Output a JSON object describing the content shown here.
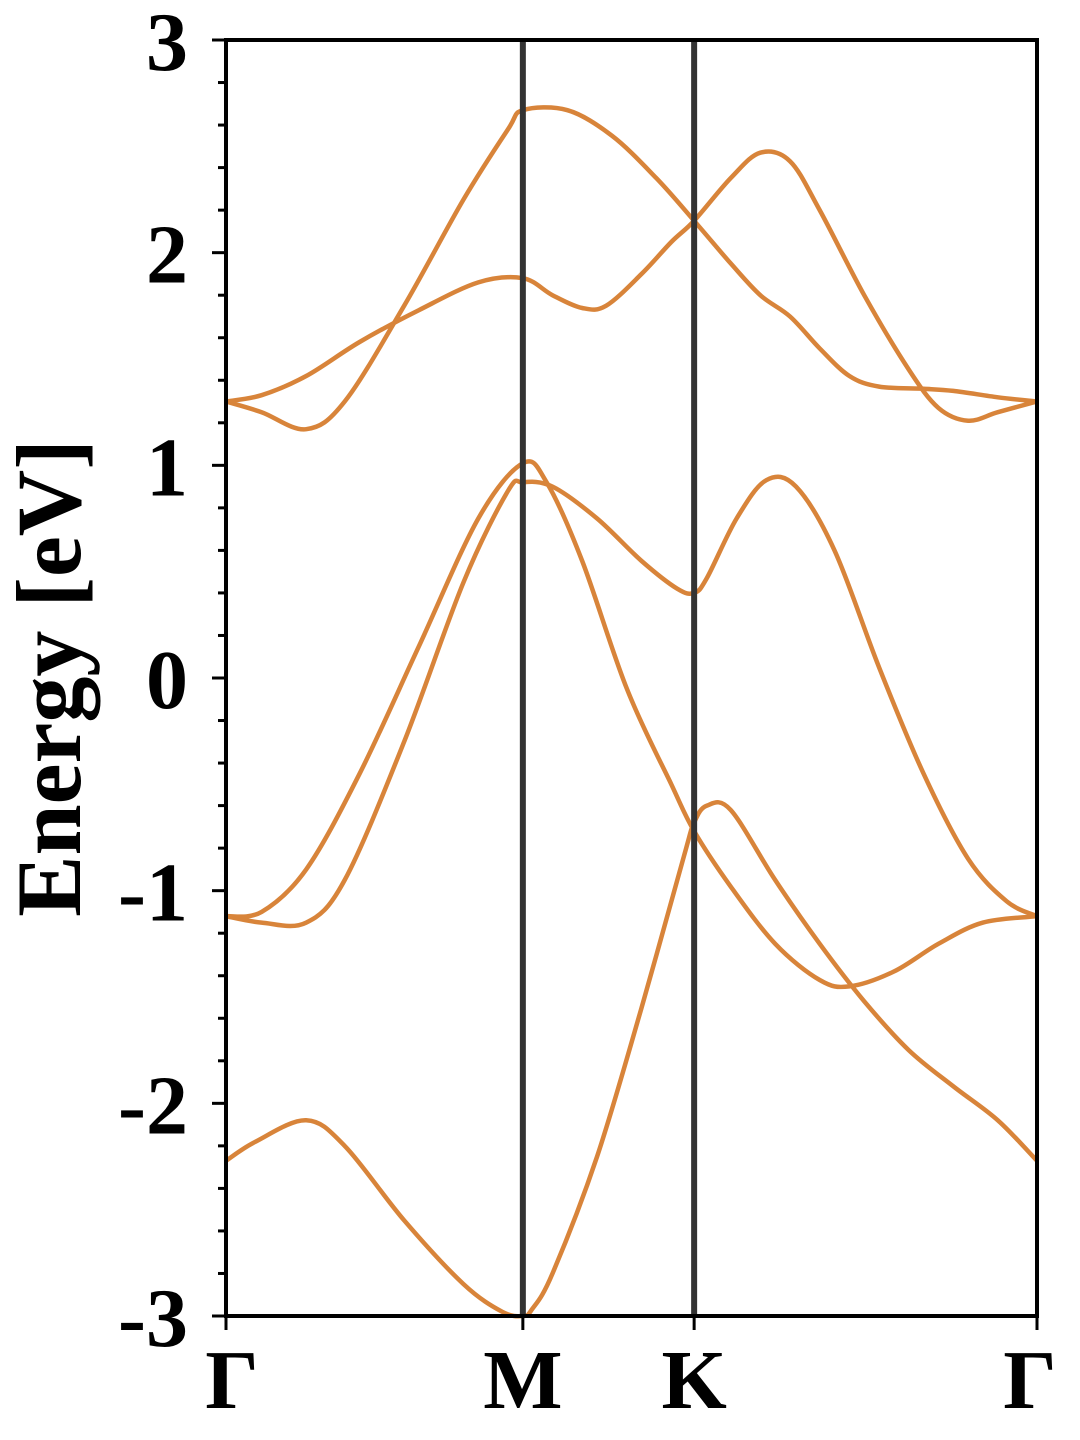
{
  "chart_data": {
    "type": "line",
    "title": "",
    "xlabel": "",
    "ylabel": "Energy [eV]",
    "ylim": [
      -3,
      3
    ],
    "grid": false,
    "legend": "none",
    "colors": {
      "band": "#d8843a",
      "divider": "#333333",
      "frame": "#000000"
    },
    "k_points": [
      {
        "label": "Γ",
        "x": 0.0
      },
      {
        "label": "M",
        "x": 1.0
      },
      {
        "label": "K",
        "x": 1.577
      },
      {
        "label": "Γ",
        "x": 2.732
      }
    ],
    "y_ticks": [
      {
        "label": "3",
        "value": 3
      },
      {
        "label": "2",
        "value": 2
      },
      {
        "label": "1",
        "value": 1
      },
      {
        "label": "0",
        "value": 0
      },
      {
        "label": "-1",
        "value": -1
      },
      {
        "label": "-2",
        "value": -2
      },
      {
        "label": "-3",
        "value": -3
      }
    ],
    "y_minor_step": 0.2,
    "series": [
      {
        "points": [
          [
            0,
            -2.27
          ],
          [
            0.1,
            -2.18
          ],
          [
            0.27,
            -2.08
          ],
          [
            0.4,
            -2.2
          ],
          [
            0.6,
            -2.55
          ],
          [
            0.8,
            -2.85
          ],
          [
            0.93,
            -2.98
          ],
          [
            1.0,
            -3.0
          ],
          [
            1.03,
            -2.97
          ],
          [
            1.1,
            -2.8
          ],
          [
            1.25,
            -2.25
          ],
          [
            1.4,
            -1.55
          ],
          [
            1.54,
            -0.85
          ],
          [
            1.577,
            -0.68
          ],
          [
            1.62,
            -0.6
          ],
          [
            1.7,
            -0.62
          ],
          [
            1.85,
            -0.95
          ],
          [
            2.0,
            -1.25
          ],
          [
            2.15,
            -1.52
          ],
          [
            2.3,
            -1.75
          ],
          [
            2.45,
            -1.92
          ],
          [
            2.6,
            -2.08
          ],
          [
            2.732,
            -2.27
          ]
        ]
      },
      {
        "points": [
          [
            0,
            -1.12
          ],
          [
            0.12,
            -1.1
          ],
          [
            0.27,
            -0.9
          ],
          [
            0.45,
            -0.45
          ],
          [
            0.65,
            0.15
          ],
          [
            0.85,
            0.75
          ],
          [
            1.0,
            1.01
          ],
          [
            1.08,
            0.92
          ],
          [
            1.2,
            0.55
          ],
          [
            1.35,
            -0.05
          ],
          [
            1.5,
            -0.5
          ],
          [
            1.577,
            -0.72
          ],
          [
            1.7,
            -0.98
          ],
          [
            1.85,
            -1.25
          ],
          [
            2.0,
            -1.42
          ],
          [
            2.1,
            -1.45
          ],
          [
            2.25,
            -1.38
          ],
          [
            2.4,
            -1.25
          ],
          [
            2.55,
            -1.15
          ],
          [
            2.732,
            -1.12
          ]
        ]
      },
      {
        "points": [
          [
            0,
            -1.12
          ],
          [
            0.12,
            -1.15
          ],
          [
            0.27,
            -1.15
          ],
          [
            0.4,
            -0.95
          ],
          [
            0.6,
            -0.3
          ],
          [
            0.8,
            0.45
          ],
          [
            0.95,
            0.88
          ],
          [
            1.0,
            0.92
          ],
          [
            1.1,
            0.9
          ],
          [
            1.25,
            0.75
          ],
          [
            1.4,
            0.55
          ],
          [
            1.52,
            0.42
          ],
          [
            1.577,
            0.4
          ],
          [
            1.62,
            0.47
          ],
          [
            1.72,
            0.75
          ],
          [
            1.82,
            0.93
          ],
          [
            1.92,
            0.9
          ],
          [
            2.05,
            0.6
          ],
          [
            2.2,
            0.05
          ],
          [
            2.35,
            -0.45
          ],
          [
            2.5,
            -0.85
          ],
          [
            2.63,
            -1.05
          ],
          [
            2.732,
            -1.12
          ]
        ]
      },
      {
        "points": [
          [
            0,
            1.3
          ],
          [
            0.12,
            1.25
          ],
          [
            0.27,
            1.17
          ],
          [
            0.4,
            1.3
          ],
          [
            0.6,
            1.75
          ],
          [
            0.8,
            2.25
          ],
          [
            0.95,
            2.58
          ],
          [
            1.0,
            2.67
          ],
          [
            1.15,
            2.67
          ],
          [
            1.3,
            2.55
          ],
          [
            1.45,
            2.35
          ],
          [
            1.577,
            2.15
          ],
          [
            1.7,
            1.95
          ],
          [
            1.8,
            1.8
          ],
          [
            1.9,
            1.7
          ],
          [
            2.0,
            1.55
          ],
          [
            2.1,
            1.42
          ],
          [
            2.2,
            1.37
          ],
          [
            2.35,
            1.36
          ],
          [
            2.45,
            1.35
          ],
          [
            2.6,
            1.32
          ],
          [
            2.732,
            1.3
          ]
        ]
      },
      {
        "points": [
          [
            0,
            1.3
          ],
          [
            0.12,
            1.33
          ],
          [
            0.27,
            1.42
          ],
          [
            0.45,
            1.58
          ],
          [
            0.65,
            1.73
          ],
          [
            0.85,
            1.86
          ],
          [
            1.0,
            1.88
          ],
          [
            1.1,
            1.8
          ],
          [
            1.2,
            1.74
          ],
          [
            1.28,
            1.75
          ],
          [
            1.4,
            1.9
          ],
          [
            1.5,
            2.05
          ],
          [
            1.577,
            2.15
          ],
          [
            1.7,
            2.35
          ],
          [
            1.8,
            2.47
          ],
          [
            1.9,
            2.43
          ],
          [
            2.0,
            2.2
          ],
          [
            2.15,
            1.8
          ],
          [
            2.3,
            1.45
          ],
          [
            2.4,
            1.27
          ],
          [
            2.5,
            1.21
          ],
          [
            2.6,
            1.25
          ],
          [
            2.732,
            1.3
          ]
        ]
      }
    ]
  }
}
